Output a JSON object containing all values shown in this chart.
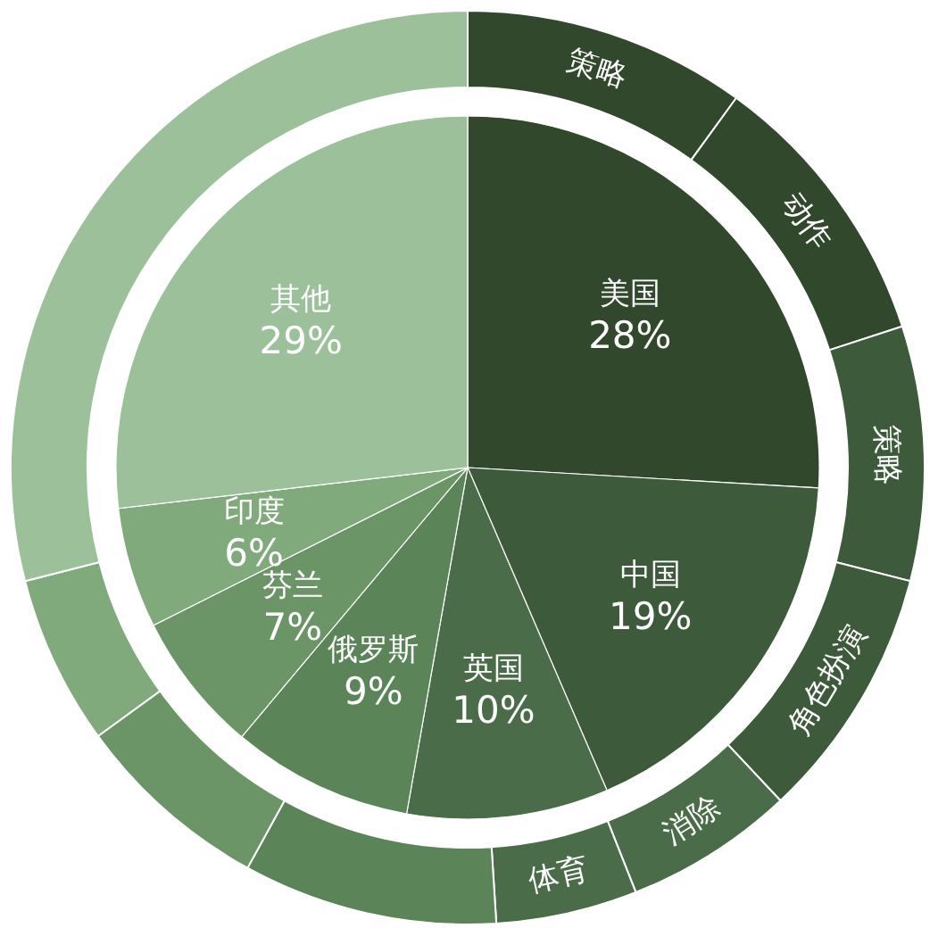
{
  "chart_data": [
    {
      "type": "pie",
      "categories": [
        "美国",
        "中国",
        "英国",
        "俄罗斯",
        "芬兰",
        "印度",
        "其他"
      ],
      "values": [
        28,
        19,
        10,
        9,
        7,
        6,
        29
      ],
      "value_labels": [
        "28%",
        "19%",
        "10%",
        "9%",
        "7%",
        "6%",
        "29%"
      ],
      "colors": [
        "#31482d",
        "#3d5a3a",
        "#4b6c48",
        "#5c8459",
        "#6b9467",
        "#80a97c",
        "#9cc09a"
      ]
    },
    {
      "type": "donut",
      "categories": [
        "策略",
        "动作",
        "策略",
        "角色扮演",
        "消除",
        "体育",
        null,
        null,
        null,
        null
      ],
      "values": [
        10,
        10,
        9,
        9,
        6,
        5,
        9,
        7,
        6,
        29
      ],
      "colors": [
        "#31482d",
        "#31482d",
        "#3d5a3a",
        "#3d5a3a",
        "#4b6c48",
        "#4b6c48",
        "#5c8459",
        "#6b9467",
        "#80a97c",
        "#9cc09a"
      ]
    }
  ]
}
